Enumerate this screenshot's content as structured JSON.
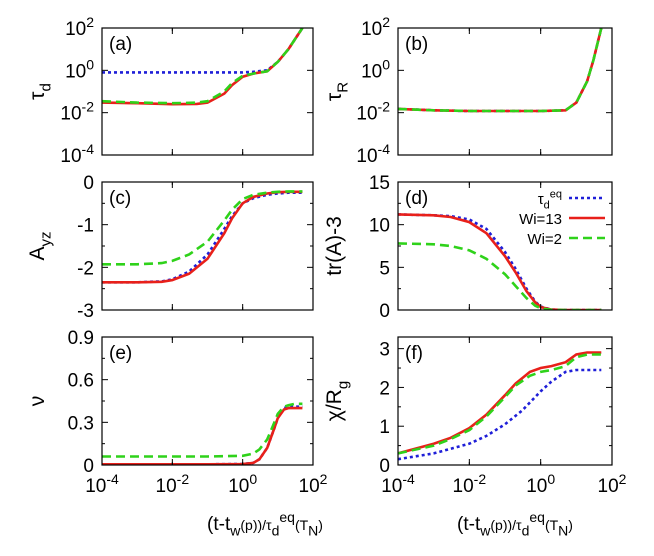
{
  "figure": {
    "xlabel_left": "(t-t_w(p))/τ_d^eq(T_N)",
    "xlabel_right": "(t-t_w(p))/τ_d^eq(T_N)"
  },
  "legend": {
    "entries": [
      {
        "label": "τ_d^eq",
        "color": "#1f1fd8",
        "style": "dotted"
      },
      {
        "label": "Wi=13",
        "color": "#e8201a",
        "style": "solid"
      },
      {
        "label": "Wi=2",
        "color": "#2fd21a",
        "style": "dashed"
      }
    ],
    "placement": "top-right of panel (d)"
  },
  "colors": {
    "blue": "#1f1fd8",
    "red": "#e8201a",
    "green": "#2fd21a"
  },
  "chart_data": [
    {
      "panel": "(a)",
      "type": "line",
      "ylabel": "τ_d",
      "xscale": "log",
      "yscale": "log",
      "xlim": [
        0.0001,
        100
      ],
      "ylim": [
        0.0001,
        100
      ],
      "xticks": [
        "10^-4",
        "10^-2",
        "10^0",
        "10^2"
      ],
      "yticks": [
        "10^-4",
        "10^-2",
        "10^0",
        "10^2"
      ],
      "series": [
        {
          "name": "τ_d^eq",
          "x": [
            0.0001,
            0.001,
            0.01,
            0.1,
            0.5,
            1,
            2,
            5,
            10,
            20,
            50
          ],
          "y": [
            0.8,
            0.8,
            0.8,
            0.8,
            0.8,
            0.8,
            0.85,
            1.0,
            2.5,
            10,
            100
          ]
        },
        {
          "name": "Wi=13",
          "x": [
            0.0001,
            0.001,
            0.01,
            0.05,
            0.1,
            0.3,
            0.5,
            1,
            2,
            5,
            10,
            20,
            50
          ],
          "y": [
            0.03,
            0.028,
            0.025,
            0.026,
            0.03,
            0.08,
            0.2,
            0.5,
            0.7,
            0.9,
            2.5,
            10,
            100
          ]
        },
        {
          "name": "Wi=2",
          "x": [
            0.0001,
            0.001,
            0.01,
            0.05,
            0.1,
            0.3,
            0.5,
            1,
            2,
            5,
            10,
            20,
            50
          ],
          "y": [
            0.035,
            0.03,
            0.028,
            0.03,
            0.035,
            0.1,
            0.25,
            0.55,
            0.7,
            0.9,
            2.5,
            10,
            100
          ]
        }
      ]
    },
    {
      "panel": "(b)",
      "type": "line",
      "ylabel": "τ_R",
      "xscale": "log",
      "yscale": "log",
      "xlim": [
        0.0001,
        100
      ],
      "ylim": [
        0.0001,
        100
      ],
      "xticks": [
        "10^-4",
        "10^-2",
        "10^0",
        "10^2"
      ],
      "yticks": [
        "10^-4",
        "10^-2",
        "10^0",
        "10^2"
      ],
      "series": [
        {
          "name": "τ_d^eq",
          "x": [
            0.0001,
            0.001,
            0.01,
            0.1,
            1,
            5,
            10,
            20,
            30,
            50
          ],
          "y": [
            0.015,
            0.013,
            0.012,
            0.012,
            0.012,
            0.013,
            0.03,
            0.3,
            3,
            100
          ]
        },
        {
          "name": "Wi=13",
          "x": [
            0.0001,
            0.001,
            0.01,
            0.1,
            1,
            5,
            10,
            20,
            30,
            50
          ],
          "y": [
            0.015,
            0.013,
            0.012,
            0.012,
            0.012,
            0.013,
            0.03,
            0.3,
            3,
            100
          ]
        },
        {
          "name": "Wi=2",
          "x": [
            0.0001,
            0.001,
            0.01,
            0.1,
            1,
            5,
            10,
            20,
            30,
            50
          ],
          "y": [
            0.015,
            0.013,
            0.012,
            0.012,
            0.012,
            0.013,
            0.03,
            0.3,
            3,
            100
          ]
        }
      ]
    },
    {
      "panel": "(c)",
      "type": "line",
      "ylabel": "A_yz",
      "xscale": "log",
      "yscale": "linear",
      "xlim": [
        0.0001,
        100
      ],
      "ylim": [
        -3,
        0
      ],
      "xticks": [
        "10^-4",
        "10^-2",
        "10^0",
        "10^2"
      ],
      "yticks": [
        "-3",
        "-2",
        "-1",
        "0"
      ],
      "series": [
        {
          "name": "τ_d^eq",
          "x": [
            0.0001,
            0.001,
            0.005,
            0.01,
            0.03,
            0.1,
            0.3,
            0.5,
            1,
            2,
            5,
            10,
            20,
            50
          ],
          "y": [
            -2.35,
            -2.35,
            -2.33,
            -2.28,
            -2.1,
            -1.7,
            -1.1,
            -0.8,
            -0.5,
            -0.38,
            -0.3,
            -0.27,
            -0.25,
            -0.25
          ]
        },
        {
          "name": "Wi=13",
          "x": [
            0.0001,
            0.001,
            0.005,
            0.01,
            0.03,
            0.1,
            0.3,
            0.5,
            1,
            2,
            5,
            10,
            20,
            50
          ],
          "y": [
            -2.35,
            -2.35,
            -2.34,
            -2.3,
            -2.15,
            -1.8,
            -1.2,
            -0.85,
            -0.5,
            -0.35,
            -0.27,
            -0.24,
            -0.23,
            -0.23
          ]
        },
        {
          "name": "Wi=2",
          "x": [
            0.0001,
            0.001,
            0.005,
            0.01,
            0.03,
            0.1,
            0.3,
            0.5,
            1,
            2,
            5,
            10,
            20,
            50
          ],
          "y": [
            -1.93,
            -1.93,
            -1.9,
            -1.85,
            -1.7,
            -1.4,
            -0.9,
            -0.65,
            -0.4,
            -0.3,
            -0.25,
            -0.23,
            -0.22,
            -0.22
          ]
        }
      ]
    },
    {
      "panel": "(d)",
      "type": "line",
      "ylabel": "tr(A)-3",
      "xscale": "log",
      "yscale": "linear",
      "xlim": [
        0.0001,
        100
      ],
      "ylim": [
        0,
        15
      ],
      "xticks": [
        "10^-4",
        "10^-2",
        "10^0",
        "10^2"
      ],
      "yticks": [
        "0",
        "5",
        "10",
        "15"
      ],
      "series": [
        {
          "name": "τ_d^eq",
          "x": [
            0.0001,
            0.001,
            0.003,
            0.01,
            0.03,
            0.1,
            0.2,
            0.4,
            0.7,
            1,
            2,
            5,
            50
          ],
          "y": [
            11.2,
            11.1,
            11.0,
            10.6,
            9.5,
            6.8,
            4.8,
            2.5,
            1.0,
            0.4,
            0.05,
            0,
            0
          ]
        },
        {
          "name": "Wi=13",
          "x": [
            0.0001,
            0.001,
            0.003,
            0.01,
            0.03,
            0.1,
            0.2,
            0.4,
            0.7,
            1,
            2,
            5,
            50
          ],
          "y": [
            11.2,
            11.1,
            10.9,
            10.3,
            9.0,
            6.3,
            4.4,
            2.2,
            0.9,
            0.35,
            0.05,
            0,
            0
          ]
        },
        {
          "name": "Wi=2",
          "x": [
            0.0001,
            0.001,
            0.003,
            0.01,
            0.03,
            0.1,
            0.2,
            0.4,
            0.7,
            1,
            2,
            5,
            50
          ],
          "y": [
            7.8,
            7.7,
            7.5,
            7.0,
            6.0,
            4.2,
            2.8,
            1.4,
            0.5,
            0.2,
            0.02,
            0,
            0
          ]
        }
      ]
    },
    {
      "panel": "(e)",
      "type": "line",
      "ylabel": "ν",
      "xscale": "log",
      "yscale": "linear",
      "xlim": [
        0.0001,
        100
      ],
      "ylim": [
        0,
        0.9
      ],
      "xticks": [
        "10^-4",
        "10^-2",
        "10^0",
        "10^2"
      ],
      "yticks": [
        "0",
        "0.3",
        "0.6",
        "0.9"
      ],
      "series": [
        {
          "name": "τ_d^eq",
          "x": [
            0.0001,
            0.001,
            0.01,
            0.1,
            1,
            2,
            3,
            5,
            8,
            10,
            15,
            20,
            30,
            50
          ],
          "y": [
            0.005,
            0.005,
            0.005,
            0.005,
            0.007,
            0.015,
            0.04,
            0.12,
            0.26,
            0.33,
            0.4,
            0.41,
            0.41,
            0.41
          ]
        },
        {
          "name": "Wi=13",
          "x": [
            0.0001,
            0.001,
            0.01,
            0.1,
            1,
            2,
            3,
            5,
            8,
            10,
            15,
            20,
            30,
            50
          ],
          "y": [
            0.005,
            0.005,
            0.005,
            0.005,
            0.007,
            0.015,
            0.04,
            0.12,
            0.26,
            0.33,
            0.39,
            0.4,
            0.4,
            0.4
          ]
        },
        {
          "name": "Wi=2",
          "x": [
            0.0001,
            0.001,
            0.01,
            0.1,
            1,
            2,
            3,
            5,
            8,
            10,
            15,
            20,
            30,
            50
          ],
          "y": [
            0.06,
            0.06,
            0.06,
            0.06,
            0.065,
            0.08,
            0.11,
            0.18,
            0.3,
            0.36,
            0.41,
            0.42,
            0.43,
            0.43
          ]
        }
      ]
    },
    {
      "panel": "(f)",
      "type": "line",
      "ylabel": "χ/R_g",
      "xscale": "log",
      "yscale": "linear",
      "xlim": [
        0.0001,
        100
      ],
      "ylim": [
        0,
        3.3
      ],
      "xticks": [
        "10^-4",
        "10^-2",
        "10^0",
        "10^2"
      ],
      "yticks": [
        "0",
        "1",
        "2",
        "3"
      ],
      "series": [
        {
          "name": "τ_d^eq",
          "x": [
            0.0001,
            0.001,
            0.01,
            0.03,
            0.1,
            0.3,
            1,
            2,
            5,
            10,
            20,
            50
          ],
          "y": [
            0.15,
            0.3,
            0.55,
            0.75,
            1.05,
            1.4,
            1.9,
            2.15,
            2.4,
            2.45,
            2.45,
            2.45
          ]
        },
        {
          "name": "Wi=13",
          "x": [
            0.0001,
            0.001,
            0.003,
            0.01,
            0.03,
            0.1,
            0.2,
            0.5,
            1,
            2,
            5,
            10,
            20,
            50
          ],
          "y": [
            0.3,
            0.55,
            0.7,
            0.95,
            1.3,
            1.8,
            2.1,
            2.4,
            2.5,
            2.55,
            2.65,
            2.85,
            2.9,
            2.9
          ]
        },
        {
          "name": "Wi=2",
          "x": [
            0.0001,
            0.001,
            0.003,
            0.01,
            0.03,
            0.1,
            0.2,
            0.5,
            1,
            2,
            5,
            10,
            20,
            50
          ],
          "y": [
            0.3,
            0.5,
            0.67,
            0.9,
            1.25,
            1.75,
            2.05,
            2.3,
            2.4,
            2.45,
            2.55,
            2.78,
            2.85,
            2.85
          ]
        }
      ]
    }
  ]
}
